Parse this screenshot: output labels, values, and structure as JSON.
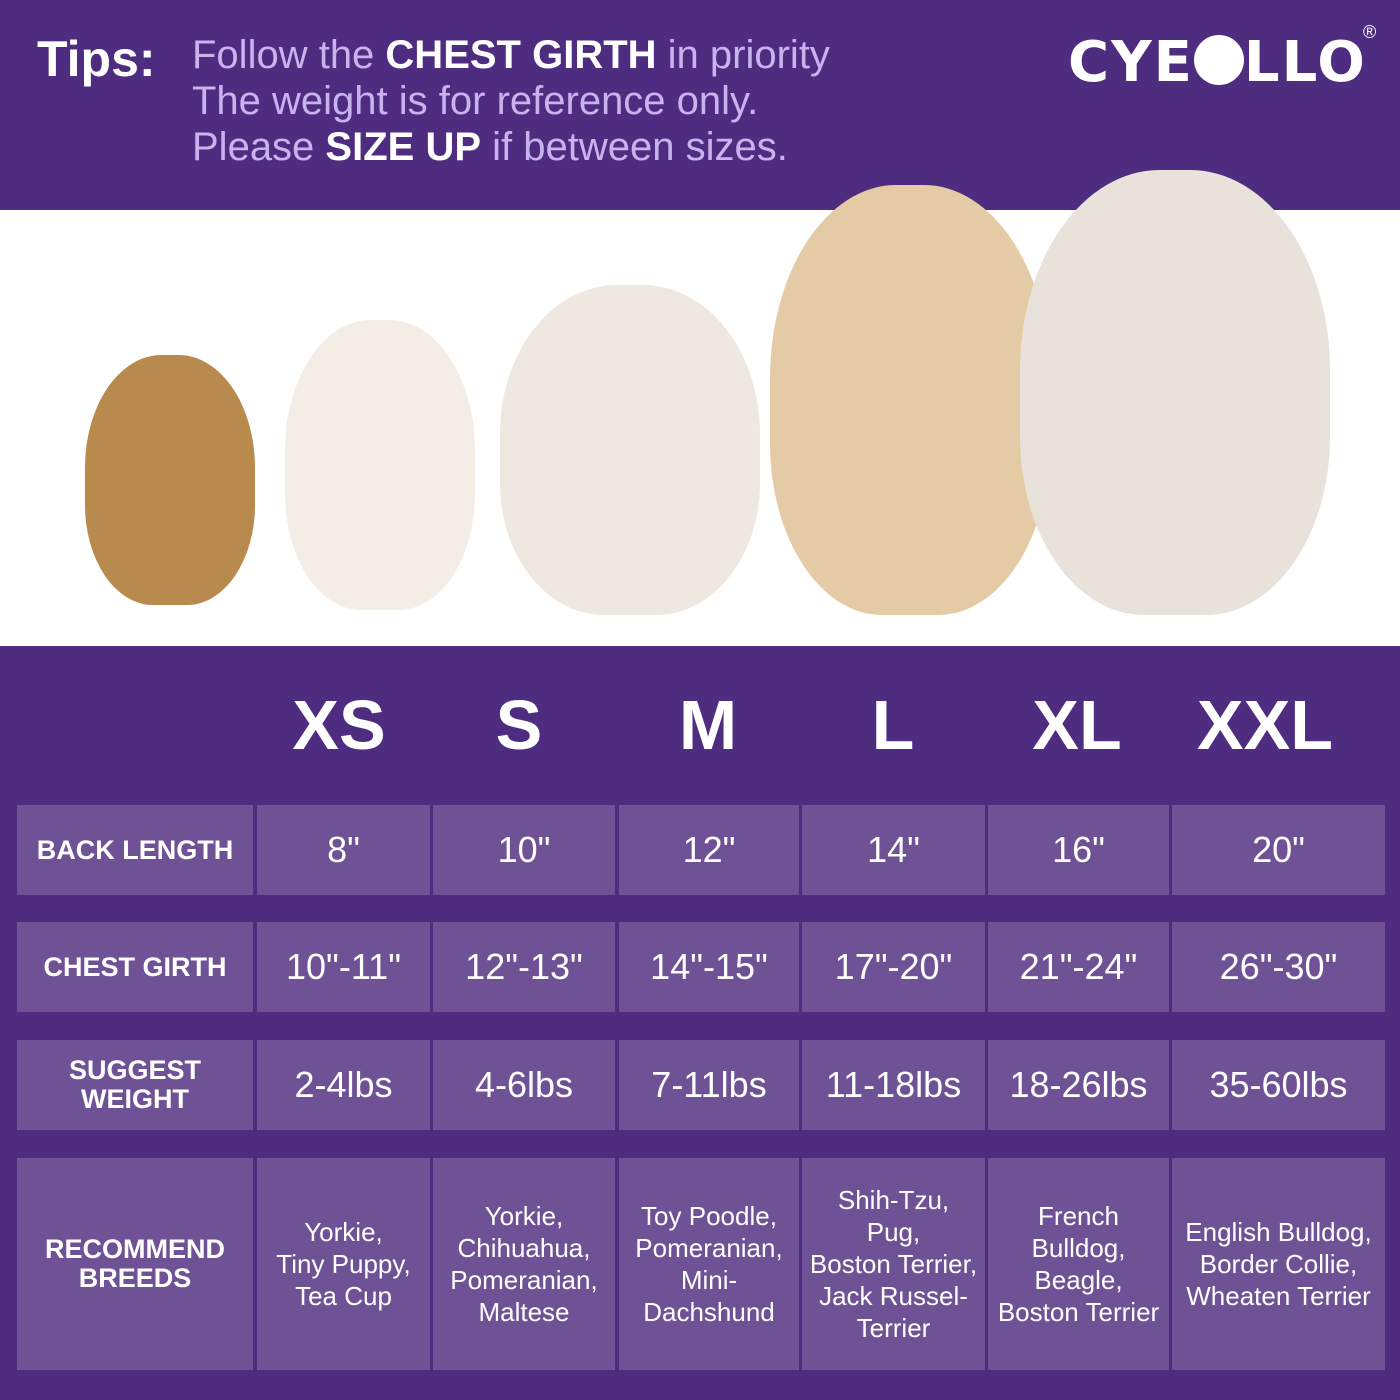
{
  "header": {
    "tips_label": "Tips:",
    "line1": {
      "pre": "Follow the ",
      "bold": "CHEST GIRTH",
      "post": " in priority"
    },
    "line2": "The weight is for reference only.",
    "line3": {
      "pre": "Please ",
      "bold": "SIZE UP",
      "post": " if between sizes."
    },
    "logo": {
      "text_left": "CYE",
      "text_right": "LLO",
      "registered": "®"
    }
  },
  "colors": {
    "background": "#4e2c80",
    "cell": "#6f5296",
    "tip_text": "#c8b3ef"
  },
  "sizes": [
    "XS",
    "S",
    "M",
    "L",
    "XL",
    "XXL"
  ],
  "rows": [
    {
      "label": "BACK  LENGTH",
      "values": [
        "8\"",
        "10\"",
        "12\"",
        "14\"",
        "16\"",
        "20\""
      ]
    },
    {
      "label": "CHEST GIRTH",
      "values": [
        "10\"-11\"",
        "12\"-13\"",
        "14\"-15\"",
        "17\"-20\"",
        "21\"-24\"",
        "26\"-30\""
      ]
    },
    {
      "label": "SUGGEST WEIGHT",
      "values": [
        "2-4lbs",
        "4-6lbs",
        "7-11lbs",
        "11-18lbs",
        "18-26lbs",
        "35-60lbs"
      ]
    },
    {
      "label": "RECOMMEND\nBREEDS",
      "values": [
        "Yorkie,\nTiny Puppy,\nTea Cup",
        "Yorkie,\nChihuahua,\nPomeranian,\nMaltese",
        "Toy Poodle,\nPomeranian,\nMini-\nDachshund",
        "Shih-Tzu,\nPug,\nBoston Terrier,\nJack Russel-\nTerrier",
        "French Bulldog,\nBeagle,\nBoston Terrier",
        "English Bulldog,\nBorder Collie,\nWheaten Terrier"
      ]
    }
  ]
}
